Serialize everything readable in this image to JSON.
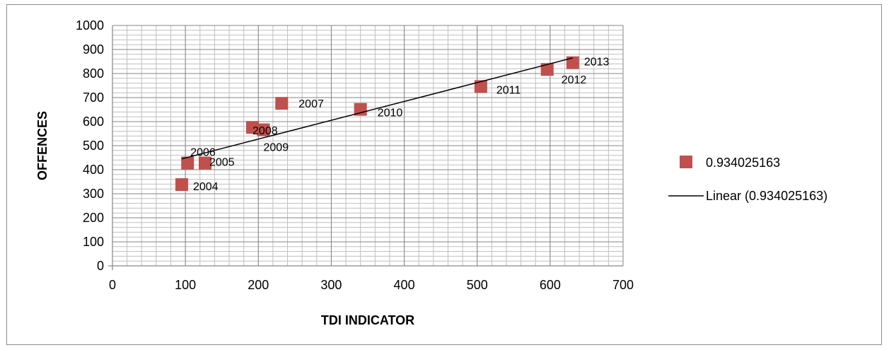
{
  "chart_data": {
    "type": "scatter",
    "title": "",
    "xlabel": "TDI INDICATOR",
    "ylabel": "OFFENCES",
    "xlim": [
      0,
      700
    ],
    "ylim": [
      0,
      1000
    ],
    "x_ticks": [
      "0",
      "100",
      "200",
      "300",
      "400",
      "500",
      "600",
      "700"
    ],
    "y_ticks": [
      "0",
      "100",
      "200",
      "300",
      "400",
      "500",
      "600",
      "700",
      "800",
      "900",
      "1000"
    ],
    "grid": true,
    "legend_position": "right",
    "series": [
      {
        "name": "0.934025163",
        "color": "#c0504d",
        "marker": "square",
        "points": [
          {
            "x": 95,
            "y": 338,
            "label": "2004"
          },
          {
            "x": 127,
            "y": 428,
            "label": "2005"
          },
          {
            "x": 103,
            "y": 428,
            "label": "2006"
          },
          {
            "x": 232,
            "y": 676,
            "label": "2007"
          },
          {
            "x": 192,
            "y": 576,
            "label": "2008"
          },
          {
            "x": 207,
            "y": 566,
            "label": "2009"
          },
          {
            "x": 340,
            "y": 651,
            "label": "2010"
          },
          {
            "x": 505,
            "y": 746,
            "label": "2011"
          },
          {
            "x": 596,
            "y": 817,
            "label": "2012"
          },
          {
            "x": 631,
            "y": 845,
            "label": "2013"
          }
        ]
      }
    ],
    "trendline": {
      "name": "Linear (0.934025163)",
      "type": "linear",
      "color": "#000000",
      "from": {
        "x": 95,
        "y": 445
      },
      "to": {
        "x": 631,
        "y": 865
      }
    }
  }
}
